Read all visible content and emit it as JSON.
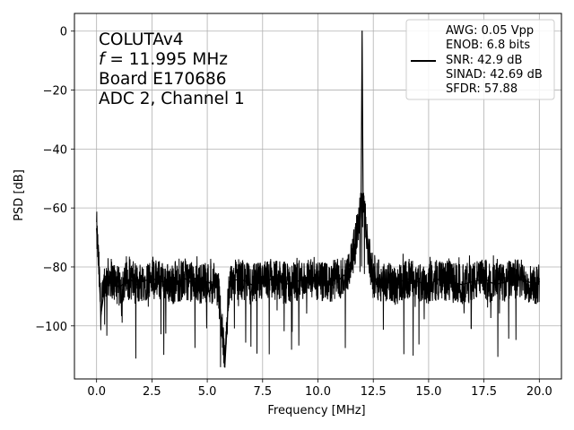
{
  "chart_data": {
    "type": "line",
    "xlabel": "Frequency [MHz]",
    "ylabel": "PSD [dB]",
    "xlim": [
      -1.0,
      21.0
    ],
    "ylim": [
      -118,
      6
    ],
    "xticks": [
      0.0,
      2.5,
      5.0,
      7.5,
      10.0,
      12.5,
      15.0,
      17.5,
      20.0
    ],
    "xtick_labels": [
      "0.0",
      "2.5",
      "5.0",
      "7.5",
      "10.0",
      "12.5",
      "15.0",
      "17.5",
      "20.0"
    ],
    "yticks": [
      0,
      -20,
      -40,
      -60,
      -80,
      -100
    ],
    "ytick_labels": [
      "0",
      "−20",
      "−40",
      "−60",
      "−80",
      "−100"
    ],
    "grid": true,
    "annotation": {
      "line1": "COLUTAv4",
      "line2_italic": "f",
      "line2_rest": " = 11.995 MHz",
      "line3": "Board E170686",
      "line4": "ADC 2, Channel 1"
    },
    "legend": {
      "placement": "upper right",
      "lines": [
        "AWG: 0.05 Vpp",
        "ENOB: 6.8 bits",
        "SNR: 42.9 dB",
        "SINAD: 42.69 dB",
        "SFDR: 57.88"
      ]
    },
    "series": [
      {
        "color": "#000000",
        "x": [
          0.0,
          0.1,
          0.2,
          0.4,
          0.6,
          1.0,
          1.5,
          1.8,
          2.0,
          2.5,
          3.0,
          3.5,
          4.0,
          4.5,
          5.0,
          5.5,
          5.8,
          6.0,
          6.5,
          7.0,
          7.5,
          8.0,
          8.5,
          9.0,
          9.5,
          10.0,
          10.5,
          10.8,
          11.0,
          11.3,
          11.5,
          11.7,
          11.8,
          11.9,
          11.95,
          11.995,
          12.04,
          12.1,
          12.2,
          12.3,
          12.5,
          13.0,
          13.5,
          14.0,
          14.5,
          15.0,
          15.5,
          16.0,
          16.5,
          17.0,
          17.5,
          18.0,
          18.5,
          19.0,
          19.5,
          19.8,
          20.0
        ],
        "y": [
          -67,
          -80,
          -96,
          -85,
          -83,
          -87,
          -84,
          -86,
          -85,
          -84,
          -85,
          -86,
          -84,
          -86,
          -85,
          -87,
          -113,
          -85,
          -84,
          -86,
          -85,
          -84,
          -86,
          -85,
          -84,
          -85,
          -86,
          -84,
          -84,
          -82,
          -78,
          -72,
          -66,
          -62,
          -58,
          0,
          -58,
          -62,
          -70,
          -76,
          -84,
          -85,
          -86,
          -84,
          -85,
          -86,
          -84,
          -85,
          -86,
          -85,
          -84,
          -86,
          -85,
          -84,
          -85,
          -86,
          -85
        ]
      }
    ]
  }
}
